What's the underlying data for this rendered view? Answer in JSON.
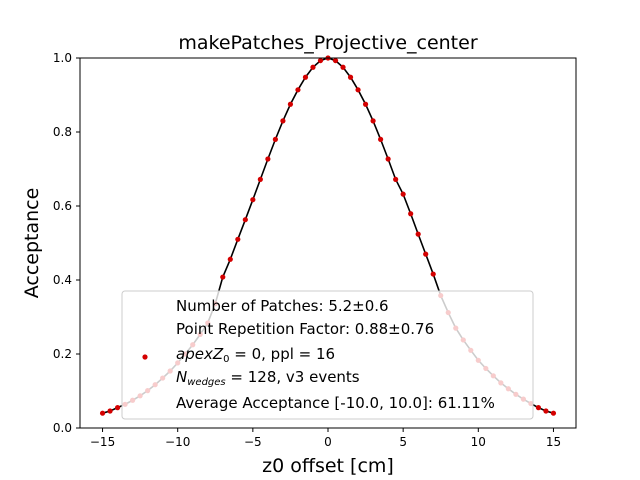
{
  "chart_data": {
    "type": "scatter",
    "title": "makePatches_Projective_center",
    "xlabel": "z0 offset [cm]",
    "ylabel": "Acceptance",
    "xlim": [
      -16.5,
      16.5
    ],
    "ylim": [
      0.0,
      1.0
    ],
    "x_ticks": [
      -15,
      -10,
      -5,
      0,
      5,
      10,
      15
    ],
    "x_tick_labels": [
      "−15",
      "−10",
      "−5",
      "0",
      "5",
      "10",
      "15"
    ],
    "y_ticks": [
      0.0,
      0.2,
      0.4,
      0.6,
      0.8,
      1.0
    ],
    "y_tick_labels": [
      "0.0",
      "0.2",
      "0.4",
      "0.6",
      "0.8",
      "1.0"
    ],
    "grid": false,
    "legend_position": "lower-center",
    "series": [
      {
        "color": "#d40000",
        "marker": "point",
        "x": [
          -15.0,
          -14.5,
          -14.0,
          -13.5,
          -13.0,
          -12.5,
          -12.0,
          -11.5,
          -11.0,
          -10.5,
          -10.0,
          -9.5,
          -9.0,
          -8.5,
          -8.0,
          -7.5,
          -7.0,
          -6.5,
          -6.0,
          -5.5,
          -5.0,
          -4.5,
          -4.0,
          -3.5,
          -3.0,
          -2.5,
          -2.0,
          -1.5,
          -1.0,
          -0.5,
          0.0,
          0.5,
          1.0,
          1.5,
          2.0,
          2.5,
          3.0,
          3.5,
          4.0,
          4.5,
          5.0,
          5.5,
          6.0,
          6.5,
          7.0,
          7.5,
          8.0,
          8.5,
          9.0,
          9.5,
          10.0,
          10.5,
          11.0,
          11.5,
          12.0,
          12.5,
          13.0,
          13.5,
          14.0,
          14.5,
          15.0
        ],
        "y": [
          0.04,
          0.046,
          0.055,
          0.064,
          0.075,
          0.087,
          0.101,
          0.117,
          0.135,
          0.154,
          0.176,
          0.2,
          0.225,
          0.253,
          0.284,
          0.336,
          0.408,
          0.456,
          0.51,
          0.563,
          0.617,
          0.672,
          0.727,
          0.78,
          0.83,
          0.875,
          0.914,
          0.948,
          0.975,
          0.993,
          1.0,
          0.993,
          0.975,
          0.948,
          0.914,
          0.875,
          0.83,
          0.78,
          0.727,
          0.672,
          0.632,
          0.579,
          0.524,
          0.47,
          0.416,
          0.358,
          0.312,
          0.27,
          0.238,
          0.21,
          0.183,
          0.161,
          0.141,
          0.122,
          0.106,
          0.091,
          0.078,
          0.066,
          0.055,
          0.046,
          0.04
        ]
      },
      {
        "color": "#000000",
        "marker": "line",
        "x": [
          -15.0,
          -14.5,
          -14.0,
          -13.5,
          -13.0,
          -12.5,
          -12.0,
          -11.5,
          -11.0,
          -10.5,
          -10.0,
          -9.5,
          -9.0,
          -8.5,
          -8.0,
          -7.5,
          -7.0,
          -6.5,
          -6.0,
          -5.5,
          -5.0,
          -4.5,
          -4.0,
          -3.5,
          -3.0,
          -2.5,
          -2.0,
          -1.5,
          -1.0,
          -0.5,
          0.0,
          0.5,
          1.0,
          1.5,
          2.0,
          2.5,
          3.0,
          3.5,
          4.0,
          4.5,
          5.0,
          5.5,
          6.0,
          6.5,
          7.0,
          7.5,
          8.0,
          8.5,
          9.0,
          9.5,
          10.0,
          10.5,
          11.0,
          11.5,
          12.0,
          12.5,
          13.0,
          13.5,
          14.0,
          14.5,
          15.0
        ],
        "y": [
          0.04,
          0.046,
          0.055,
          0.064,
          0.075,
          0.087,
          0.101,
          0.117,
          0.135,
          0.154,
          0.176,
          0.2,
          0.225,
          0.253,
          0.284,
          0.336,
          0.408,
          0.456,
          0.51,
          0.563,
          0.617,
          0.672,
          0.727,
          0.78,
          0.83,
          0.875,
          0.914,
          0.948,
          0.975,
          0.993,
          1.0,
          0.993,
          0.975,
          0.948,
          0.914,
          0.875,
          0.83,
          0.78,
          0.727,
          0.672,
          0.632,
          0.579,
          0.524,
          0.47,
          0.416,
          0.358,
          0.312,
          0.27,
          0.238,
          0.21,
          0.183,
          0.161,
          0.141,
          0.122,
          0.106,
          0.091,
          0.078,
          0.066,
          0.055,
          0.046,
          0.04
        ]
      }
    ],
    "legend": {
      "lines": [
        "Number of Patches: 5.2±0.6",
        "Point Repetition Factor: 0.88±0.76",
        "apexZ₀ = 0, ppl = 16",
        "N_wedges = 128, v3 events",
        "Average Acceptance [-10.0, 10.0]: 61.11%"
      ],
      "apex_line": {
        "sym": "apex",
        "sub": "0",
        "rest": " = 0, ppl = 16"
      },
      "wedge_line": {
        "sym": "N",
        "sub": "wedges",
        "rest": " = 128, v3 events"
      },
      "marker_color": "#d40000"
    }
  }
}
